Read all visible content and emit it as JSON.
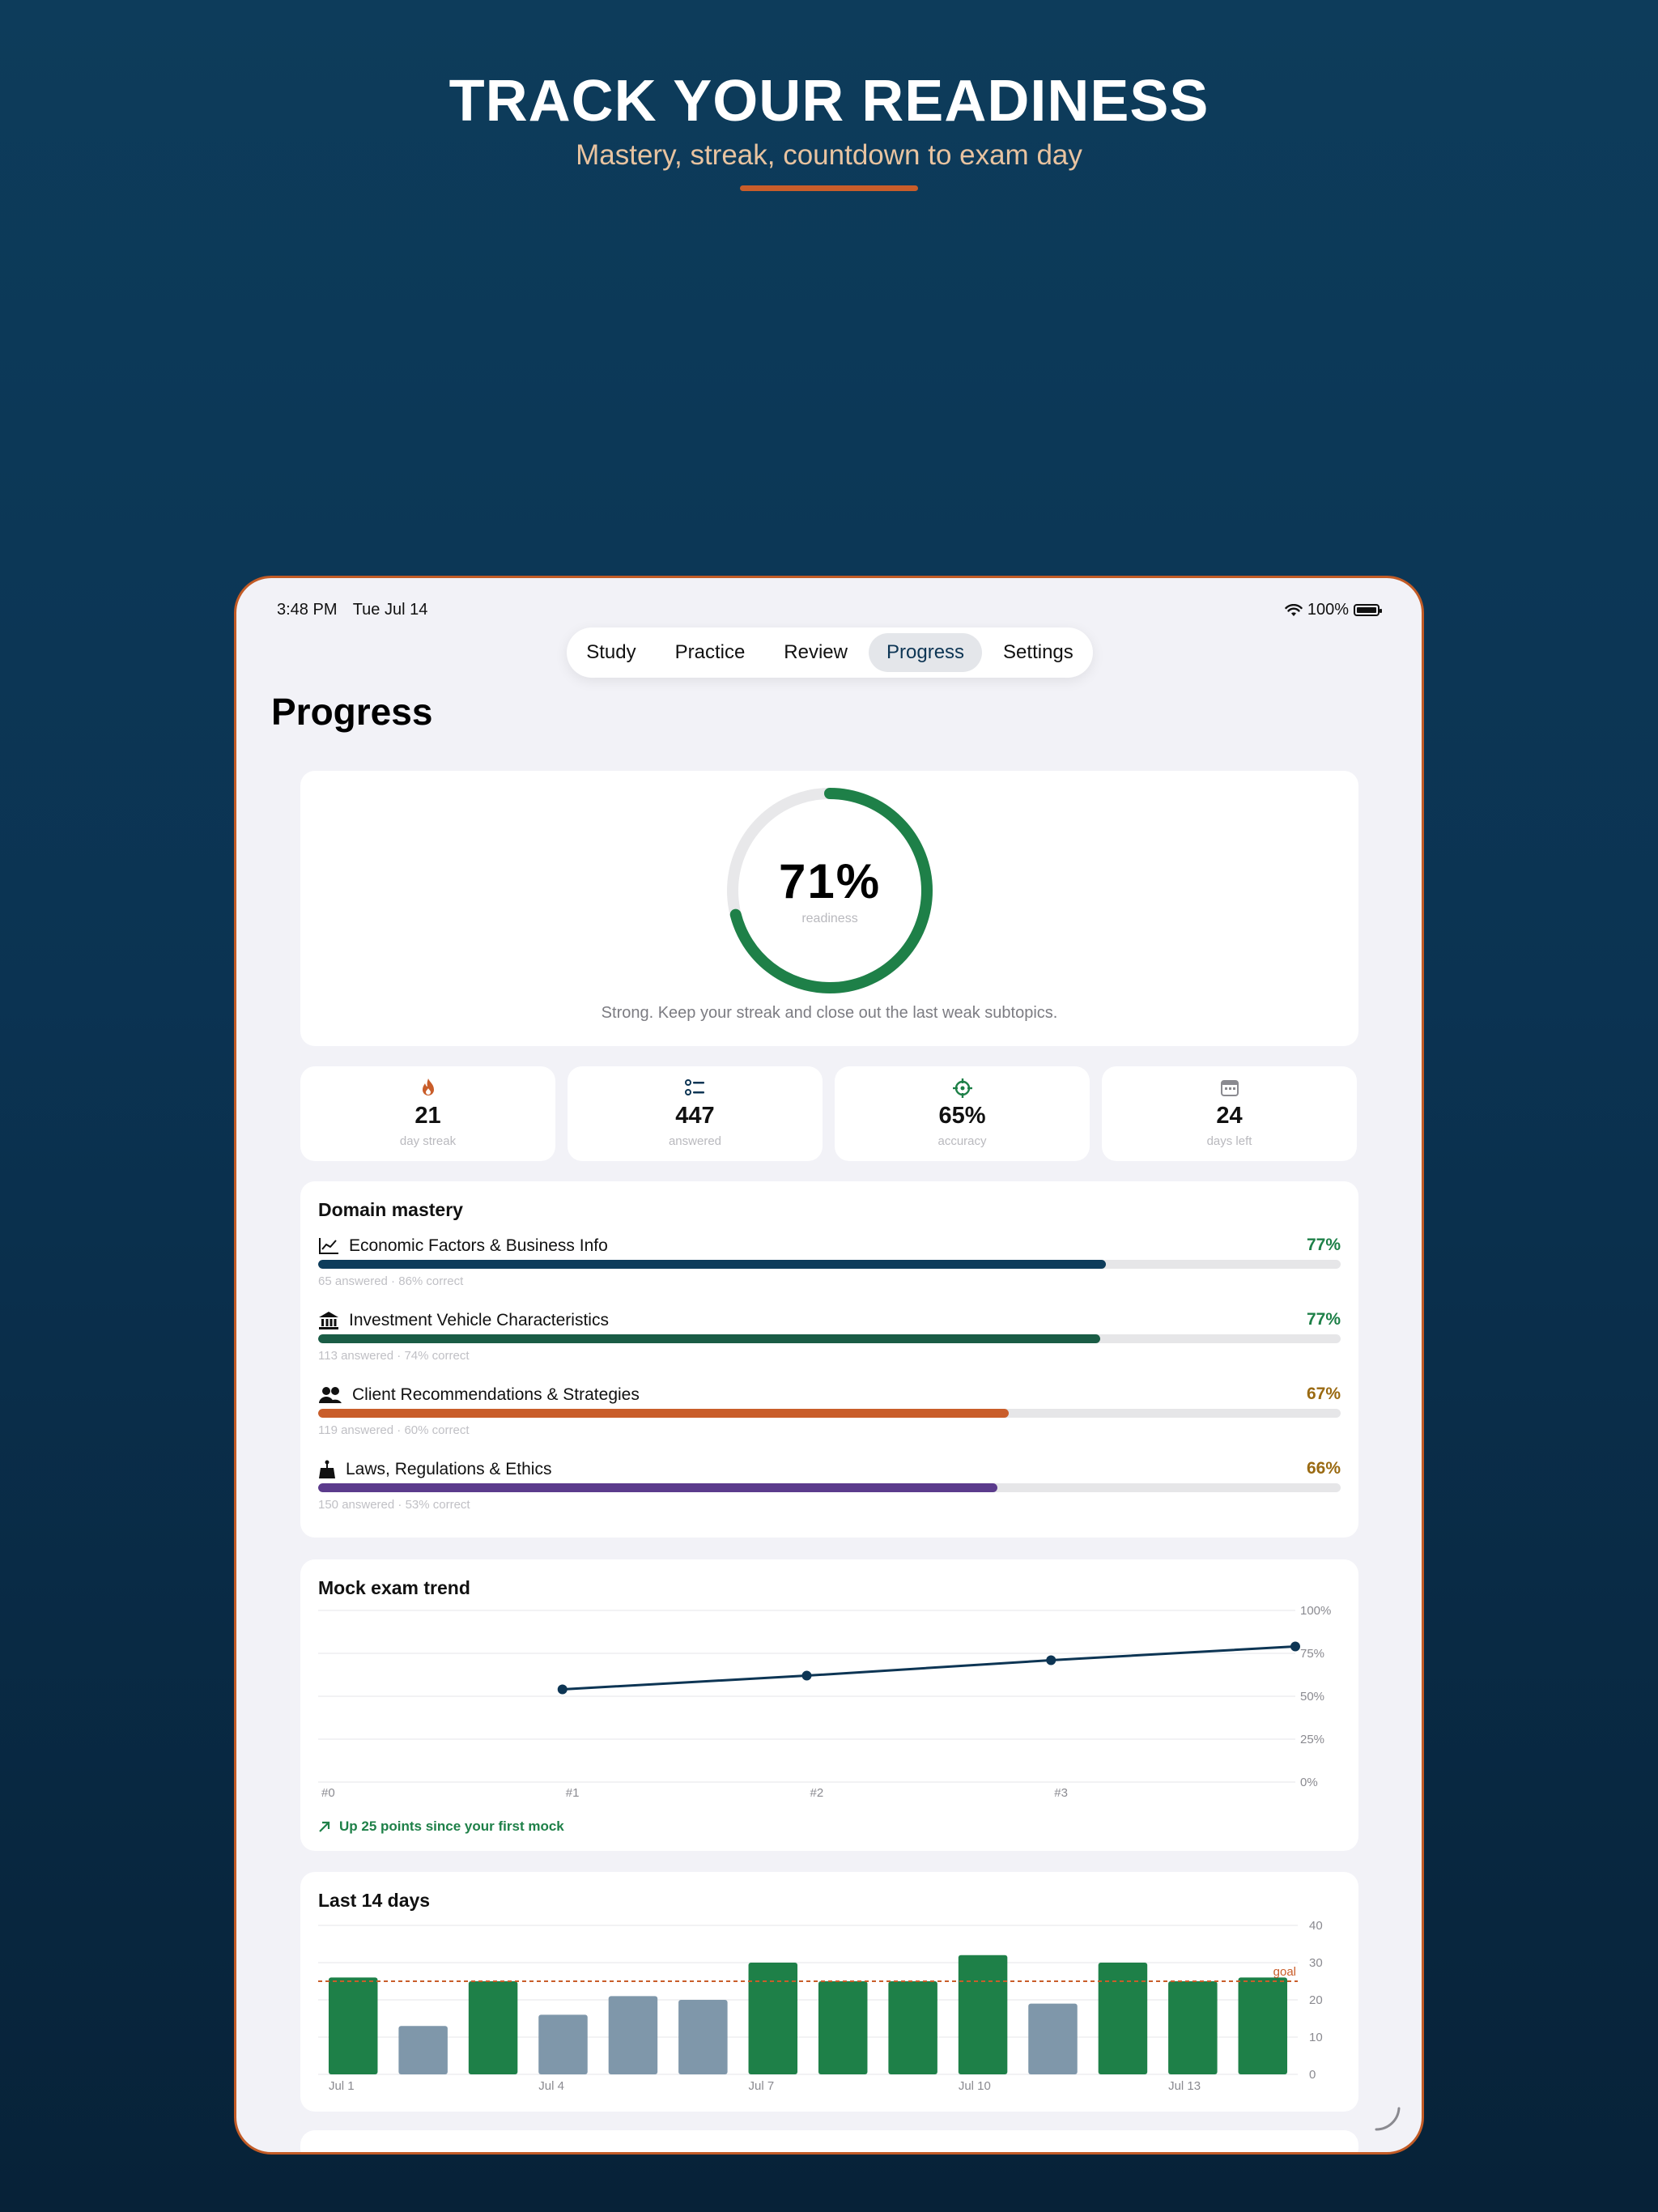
{
  "hero": {
    "title": "TRACK YOUR READINESS",
    "subtitle": "Mastery, streak, countdown to exam day"
  },
  "status_bar": {
    "time": "3:48 PM",
    "date": "Tue Jul 14",
    "battery": "100%"
  },
  "tabs": [
    {
      "label": "Study",
      "active": false
    },
    {
      "label": "Practice",
      "active": false
    },
    {
      "label": "Review",
      "active": false
    },
    {
      "label": "Progress",
      "active": true
    },
    {
      "label": "Settings",
      "active": false
    }
  ],
  "page_title": "Progress",
  "readiness": {
    "value": "71%",
    "fraction": 0.71,
    "label": "readiness",
    "message": "Strong. Keep your streak and close out the last weak subtopics."
  },
  "stats": [
    {
      "icon": "flame-icon",
      "value": "21",
      "label": "day streak",
      "color": "#c95d2a"
    },
    {
      "icon": "list-icon",
      "value": "447",
      "label": "answered",
      "color": "#0d3554"
    },
    {
      "icon": "target-icon",
      "value": "65%",
      "label": "accuracy",
      "color": "#1e8048"
    },
    {
      "icon": "calendar-icon",
      "value": "24",
      "label": "days left",
      "color": "#8a8a90"
    }
  ],
  "domain_mastery": {
    "title": "Domain mastery",
    "domains": [
      {
        "icon": "chart-line-icon",
        "name": "Economic Factors & Business Info",
        "percent": "77%",
        "fraction": 0.77,
        "meta": "65 answered · 86% correct",
        "bar_color": "#0d3c5b",
        "pct_color": "#1e8048"
      },
      {
        "icon": "bank-icon",
        "name": "Investment Vehicle Characteristics",
        "percent": "77%",
        "fraction": 0.765,
        "meta": "113 answered · 74% correct",
        "bar_color": "#1a5c45",
        "pct_color": "#1e8048"
      },
      {
        "icon": "people-icon",
        "name": "Client Recommendations & Strategies",
        "percent": "67%",
        "fraction": 0.675,
        "meta": "119 answered · 60% correct",
        "bar_color": "#c95d2a",
        "pct_color": "#9a6a12"
      },
      {
        "icon": "scales-icon",
        "name": "Laws, Regulations & Ethics",
        "percent": "66%",
        "fraction": 0.664,
        "meta": "150 answered · 53% correct",
        "bar_color": "#5b3b8c",
        "pct_color": "#9a6a12"
      }
    ]
  },
  "mock_trend": {
    "title": "Mock exam trend",
    "note": "Up 25 points since your first mock",
    "chart_data": {
      "type": "line",
      "x": [
        "#0",
        "#1",
        "#2",
        "#3",
        ""
      ],
      "series": [
        {
          "values": [
            null,
            54,
            62,
            71,
            79
          ]
        }
      ],
      "y_ticks": [
        "100%",
        "75%",
        "50%",
        "25%",
        "0%"
      ],
      "ylim": [
        0,
        100
      ],
      "grid": true,
      "color": "#0d3554"
    }
  },
  "last_14_days": {
    "title": "Last 14 days",
    "chart_data": {
      "type": "bar",
      "categories": [
        "Jul 1",
        "Jul 2",
        "Jul 3",
        "Jul 4",
        "Jul 5",
        "Jul 6",
        "Jul 7",
        "Jul 8",
        "Jul 9",
        "Jul 10",
        "Jul 11",
        "Jul 12",
        "Jul 13",
        "Jul 14"
      ],
      "tick_labels": [
        "Jul 1",
        "",
        "",
        "Jul 4",
        "",
        "",
        "Jul 7",
        "",
        "",
        "Jul 10",
        "",
        "",
        "Jul 13",
        ""
      ],
      "values": [
        26,
        13,
        25,
        16,
        21,
        20,
        30,
        25,
        25,
        32,
        19,
        30,
        25,
        26
      ],
      "goal": 25,
      "goal_label": "goal",
      "y_ticks": [
        "40",
        "30",
        "20",
        "10",
        "0"
      ],
      "ylim": [
        0,
        40
      ],
      "met_color": "#1e8048",
      "missed_color": "#7f97aa",
      "goal_color": "#c95d2a",
      "grid": true
    }
  }
}
